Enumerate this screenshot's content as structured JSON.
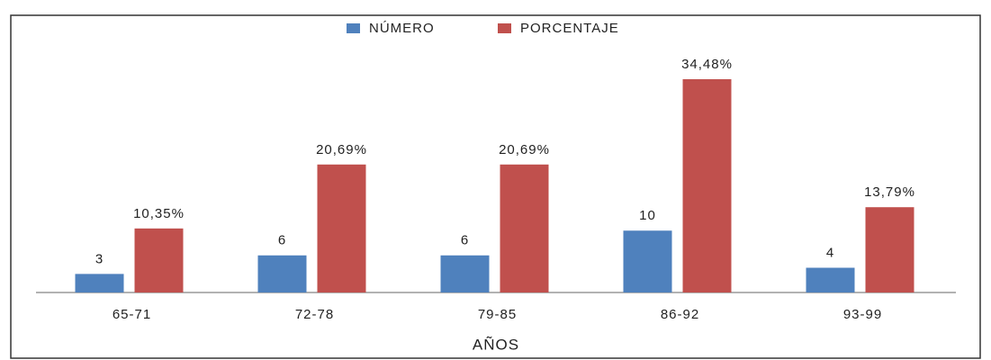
{
  "chart_data": {
    "type": "bar",
    "x_label": "AÑOS",
    "categories": [
      "65-71",
      "72-78",
      "79-85",
      "86-92",
      "93-99"
    ],
    "series": [
      {
        "name": "NÚMERO",
        "color": "#4f81bd",
        "values": [
          3,
          6,
          6,
          10,
          4
        ]
      },
      {
        "name": "PORCENTAJE",
        "color": "#c0504d",
        "values": [
          10.35,
          20.69,
          20.69,
          34.48,
          13.79
        ],
        "value_labels": [
          "10,35%",
          "20,69%",
          "20,69%",
          "34,48%",
          "13,79%"
        ]
      }
    ],
    "legend": "top"
  }
}
